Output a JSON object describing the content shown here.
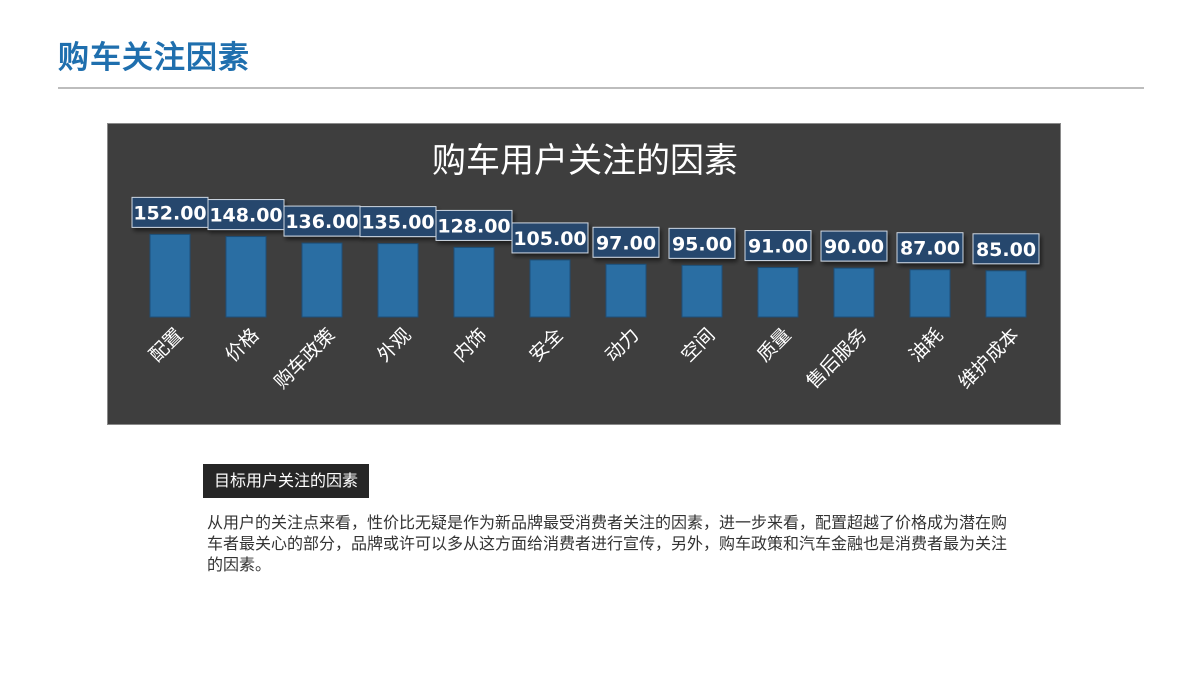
{
  "page": {
    "title": "购车关注因素"
  },
  "section": {
    "label": "目标用户关注的因素",
    "paragraph": "从用户的关注点来看，性价比无疑是作为新品牌最受消费者关注的因素，进一步来看，配置超越了价格成为潜在购车者最关心的部分，品牌或许可以多从这方面给消费者进行宣传，另外，购车政策和汽车金融也是消费者最为关注的因素。"
  },
  "colors": {
    "accent": "#1f6fae",
    "panel": "#3e3e3e",
    "bar": "#2a6ea3",
    "label_box": "#27466d"
  },
  "chart_data": {
    "type": "bar",
    "title": "购车用户关注的因素",
    "categories": [
      "配置",
      "价格",
      "购车政策",
      "外观",
      "内饰",
      "安全",
      "动力",
      "空间",
      "质量",
      "售后服务",
      "油耗",
      "维护成本"
    ],
    "values": [
      152,
      148,
      136,
      135,
      128,
      105,
      97,
      95,
      91,
      90,
      87,
      85
    ],
    "value_labels": [
      "152.00",
      "148.00",
      "136.00",
      "135.00",
      "128.00",
      "105.00",
      "97.00",
      "95.00",
      "91.00",
      "90.00",
      "87.00",
      "85.00"
    ],
    "xlabel": "",
    "ylabel": "",
    "ylim": [
      0,
      160
    ],
    "grid": false,
    "legend": "none"
  }
}
